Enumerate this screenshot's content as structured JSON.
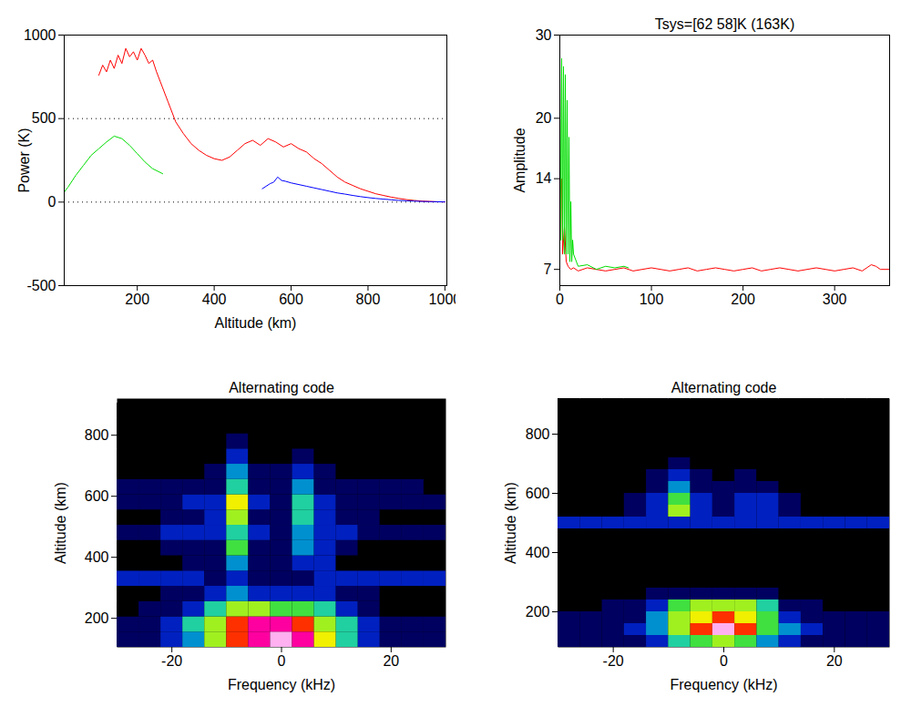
{
  "chart_data": [
    {
      "type": "line",
      "xlabel": "Altitude (km)",
      "ylabel": "Power (K)",
      "xlim": [
        10,
        1005
      ],
      "xticks": [
        200,
        400,
        600,
        800,
        1000
      ],
      "ylim": [
        -500,
        1000
      ],
      "yticks": [
        -500,
        0,
        500,
        1000
      ],
      "grid": true,
      "series": [
        {
          "color": "red",
          "x": [
            100,
            110,
            120,
            130,
            140,
            150,
            160,
            170,
            180,
            190,
            200,
            210,
            220,
            230,
            240,
            250,
            260,
            280,
            300,
            320,
            340,
            360,
            380,
            400,
            420,
            440,
            460,
            480,
            500,
            520,
            540,
            560,
            580,
            600,
            620,
            640,
            660,
            680,
            700,
            720,
            740,
            760,
            780,
            800,
            820,
            840,
            860,
            880,
            900,
            920,
            940,
            960,
            980,
            1000
          ],
          "values": [
            760,
            820,
            780,
            850,
            800,
            880,
            830,
            920,
            870,
            900,
            850,
            920,
            880,
            830,
            850,
            780,
            720,
            600,
            480,
            410,
            350,
            310,
            280,
            260,
            250,
            270,
            310,
            350,
            370,
            340,
            380,
            360,
            330,
            350,
            320,
            300,
            260,
            230,
            190,
            150,
            120,
            100,
            80,
            65,
            50,
            40,
            30,
            22,
            15,
            10,
            6,
            4,
            2,
            1
          ]
        },
        {
          "color": "#00dd00",
          "x": [
            10,
            20,
            40,
            60,
            80,
            100,
            120,
            140,
            160,
            180,
            200,
            220,
            240,
            266
          ],
          "values": [
            60,
            90,
            160,
            220,
            280,
            320,
            360,
            395,
            380,
            340,
            290,
            240,
            200,
            170
          ]
        },
        {
          "color": "blue",
          "x": [
            525,
            535,
            545,
            555,
            565,
            575,
            585,
            600,
            620,
            640,
            660,
            680,
            700,
            720,
            740,
            760,
            780,
            800,
            820,
            840,
            860,
            880,
            900,
            920,
            940,
            960,
            980,
            1000
          ],
          "values": [
            80,
            95,
            110,
            120,
            150,
            130,
            125,
            115,
            105,
            95,
            85,
            75,
            65,
            55,
            48,
            40,
            33,
            27,
            22,
            18,
            14,
            10,
            8,
            6,
            4,
            3,
            2,
            1
          ]
        }
      ]
    },
    {
      "type": "line",
      "title": "Tsys=[62 58]K (163K)",
      "ylabel": "Amplitude",
      "xlim": [
        0,
        360
      ],
      "xticks": [
        0,
        100,
        200,
        300
      ],
      "ylim": [
        6,
        30
      ],
      "yticks": [
        7,
        14,
        20,
        30
      ],
      "series": [
        {
          "color": "red",
          "x": [
            0,
            2,
            3,
            5,
            7,
            9,
            12,
            15,
            20,
            30,
            40,
            50,
            60,
            70,
            80,
            90,
            100,
            110,
            120,
            130,
            140,
            150,
            160,
            170,
            180,
            190,
            200,
            210,
            220,
            230,
            240,
            250,
            260,
            270,
            280,
            290,
            300,
            310,
            320,
            330,
            340,
            345,
            350,
            360
          ],
          "values": [
            12,
            14,
            8,
            10,
            7.5,
            7.2,
            7,
            7.1,
            6.9,
            7.1,
            7,
            6.9,
            7,
            7.1,
            6.9,
            7,
            7.1,
            7,
            6.9,
            7,
            7.1,
            6.9,
            7,
            7.1,
            7,
            6.9,
            7,
            7.1,
            6.9,
            7,
            7.1,
            7,
            6.9,
            7,
            7.1,
            7,
            6.9,
            7,
            7.1,
            6.9,
            7.3,
            7.2,
            7,
            7
          ]
        },
        {
          "color": "#00dd00",
          "x": [
            0,
            1,
            2,
            3,
            4,
            5,
            6,
            7,
            8,
            9,
            10,
            11,
            12,
            13,
            14,
            15,
            20,
            30,
            40,
            50,
            60,
            70,
            75
          ],
          "values": [
            28,
            9,
            27,
            9,
            26,
            8,
            25,
            8,
            22,
            8,
            18,
            7.5,
            12,
            7.5,
            9,
            8,
            7.2,
            7.3,
            7,
            7.2,
            7.1,
            7.2,
            7.1
          ]
        }
      ]
    },
    {
      "type": "heatmap",
      "title": "Alternating code",
      "xlabel": "Frequency (kHz)",
      "ylabel": "Altitude (km)",
      "xlim": [
        -30,
        30
      ],
      "xticks": [
        -20,
        0,
        20
      ],
      "ylim": [
        105,
        920
      ],
      "yticks": [
        200,
        400,
        600,
        800
      ],
      "x_edges": [
        -30,
        -26,
        -22,
        -18,
        -14,
        -10,
        -6,
        -2,
        2,
        6,
        10,
        14,
        18,
        22,
        26,
        30
      ],
      "y_edges": [
        105,
        155,
        205,
        255,
        305,
        355,
        405,
        455,
        505,
        555,
        605,
        655,
        705,
        755,
        805,
        855,
        905
      ],
      "cells": [
        [
          1,
          1,
          2,
          3,
          6,
          8,
          9,
          10,
          9,
          7,
          4,
          2,
          1,
          1,
          1
        ],
        [
          1,
          1,
          2,
          4,
          6,
          8,
          9,
          9,
          8,
          6,
          4,
          2,
          1,
          1,
          1
        ],
        [
          0,
          1,
          1,
          2,
          4,
          6,
          6,
          5,
          5,
          4,
          2,
          1,
          0,
          0,
          0
        ],
        [
          0,
          0,
          1,
          1,
          2,
          3,
          2,
          2,
          2,
          2,
          1,
          1,
          0,
          0,
          0
        ],
        [
          2,
          2,
          2,
          2,
          1,
          2,
          1,
          1,
          1,
          2,
          2,
          2,
          2,
          2,
          2
        ],
        [
          0,
          0,
          0,
          1,
          1,
          3,
          1,
          1,
          2,
          2,
          0,
          0,
          0,
          0,
          0
        ],
        [
          0,
          0,
          1,
          1,
          1,
          5,
          1,
          1,
          3,
          2,
          1,
          0,
          0,
          0,
          0
        ],
        [
          1,
          1,
          2,
          2,
          2,
          4,
          2,
          1,
          3,
          2,
          2,
          1,
          1,
          1,
          1
        ],
        [
          0,
          0,
          1,
          1,
          2,
          6,
          1,
          1,
          4,
          2,
          1,
          1,
          0,
          0,
          0
        ],
        [
          1,
          1,
          1,
          2,
          2,
          7,
          2,
          1,
          4,
          2,
          1,
          1,
          1,
          1,
          1
        ],
        [
          1,
          1,
          1,
          1,
          1,
          4,
          1,
          1,
          3,
          1,
          1,
          1,
          1,
          1,
          0
        ],
        [
          0,
          0,
          0,
          0,
          1,
          3,
          1,
          1,
          2,
          1,
          0,
          0,
          0,
          0,
          0
        ],
        [
          0,
          0,
          0,
          0,
          0,
          2,
          0,
          0,
          1,
          0,
          0,
          0,
          0,
          0,
          0
        ],
        [
          0,
          0,
          0,
          0,
          0,
          1,
          0,
          0,
          0,
          0,
          0,
          0,
          0,
          0,
          0
        ],
        [
          0,
          0,
          0,
          0,
          0,
          0,
          0,
          0,
          0,
          0,
          0,
          0,
          0,
          0,
          0
        ],
        [
          0,
          0,
          0,
          0,
          0,
          0,
          0,
          0,
          0,
          0,
          0,
          0,
          0,
          0,
          0
        ]
      ]
    },
    {
      "type": "heatmap",
      "title": "Alternating code",
      "xlabel": "Frequency (kHz)",
      "ylabel": "Altitude (km)",
      "xlim": [
        -30,
        30
      ],
      "xticks": [
        -20,
        0,
        20
      ],
      "ylim": [
        80,
        920
      ],
      "yticks": [
        200,
        400,
        600,
        800
      ],
      "x_edges": [
        -30,
        -26,
        -22,
        -18,
        -14,
        -10,
        -6,
        -2,
        2,
        6,
        10,
        14,
        18,
        22,
        26,
        30
      ],
      "y_edges": [
        80,
        120,
        160,
        200,
        240,
        280,
        320,
        360,
        400,
        440,
        480,
        520,
        560,
        600,
        640,
        680,
        720,
        760,
        800,
        840,
        880,
        920
      ],
      "cells": [
        [
          1,
          1,
          1,
          1,
          2,
          4,
          5,
          6,
          5,
          3,
          2,
          1,
          1,
          1,
          1
        ],
        [
          1,
          1,
          1,
          2,
          3,
          6,
          8,
          10,
          8,
          5,
          3,
          2,
          1,
          1,
          1
        ],
        [
          1,
          1,
          1,
          1,
          3,
          6,
          7,
          8,
          7,
          5,
          2,
          1,
          1,
          1,
          1
        ],
        [
          0,
          0,
          1,
          1,
          2,
          5,
          6,
          6,
          6,
          4,
          1,
          1,
          0,
          0,
          0
        ],
        [
          0,
          0,
          0,
          0,
          1,
          1,
          1,
          1,
          1,
          1,
          0,
          0,
          0,
          0,
          0
        ],
        [
          0,
          0,
          0,
          0,
          0,
          0,
          0,
          0,
          0,
          0,
          0,
          0,
          0,
          0,
          0
        ],
        [
          0,
          0,
          0,
          0,
          0,
          0,
          0,
          0,
          0,
          0,
          0,
          0,
          0,
          0,
          0
        ],
        [
          0,
          0,
          0,
          0,
          0,
          0,
          0,
          0,
          0,
          0,
          0,
          0,
          0,
          0,
          0
        ],
        [
          0,
          0,
          0,
          0,
          0,
          0,
          0,
          0,
          0,
          0,
          0,
          0,
          0,
          0,
          0
        ],
        [
          0,
          0,
          0,
          0,
          0,
          0,
          0,
          0,
          0,
          0,
          0,
          0,
          0,
          0,
          0
        ],
        [
          2,
          2,
          2,
          2,
          2,
          2,
          2,
          2,
          2,
          2,
          2,
          2,
          2,
          2,
          2
        ],
        [
          0,
          0,
          0,
          1,
          2,
          6,
          2,
          1,
          2,
          2,
          1,
          0,
          0,
          0,
          0
        ],
        [
          0,
          0,
          0,
          1,
          2,
          5,
          2,
          1,
          2,
          2,
          1,
          0,
          0,
          0,
          0
        ],
        [
          0,
          0,
          0,
          0,
          1,
          3,
          1,
          1,
          1,
          1,
          0,
          0,
          0,
          0,
          0
        ],
        [
          0,
          0,
          0,
          0,
          1,
          2,
          1,
          0,
          1,
          0,
          0,
          0,
          0,
          0,
          0
        ],
        [
          0,
          0,
          0,
          0,
          0,
          1,
          0,
          0,
          0,
          0,
          0,
          0,
          0,
          0,
          0
        ],
        [
          0,
          0,
          0,
          0,
          0,
          0,
          0,
          0,
          0,
          0,
          0,
          0,
          0,
          0,
          0
        ],
        [
          0,
          0,
          0,
          0,
          0,
          0,
          0,
          0,
          0,
          0,
          0,
          0,
          0,
          0,
          0
        ],
        [
          0,
          0,
          0,
          0,
          0,
          0,
          0,
          0,
          0,
          0,
          0,
          0,
          0,
          0,
          0
        ],
        [
          0,
          0,
          0,
          0,
          0,
          0,
          0,
          0,
          0,
          0,
          0,
          0,
          0,
          0,
          0
        ],
        [
          0,
          0,
          0,
          0,
          0,
          0,
          0,
          0,
          0,
          0,
          0,
          0,
          0,
          0,
          0
        ]
      ]
    }
  ]
}
